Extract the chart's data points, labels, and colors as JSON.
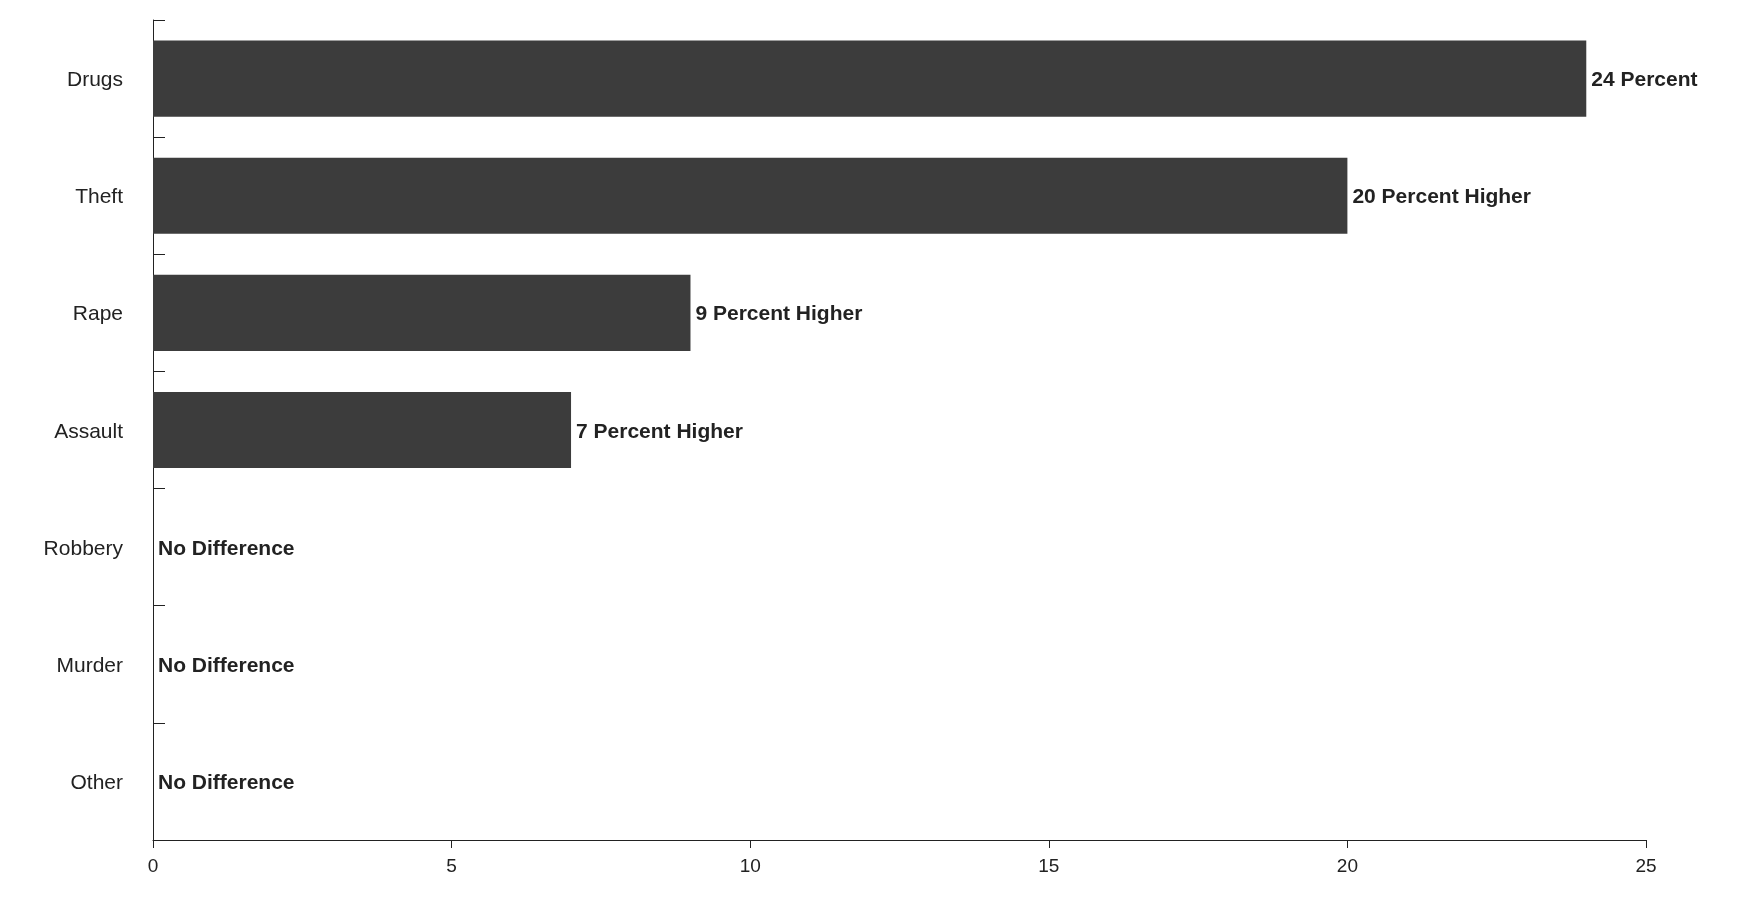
{
  "chart_data": {
    "type": "bar",
    "orientation": "horizontal",
    "categories": [
      "Drugs",
      "Theft",
      "Rape",
      "Assault",
      "Robbery",
      "Murder",
      "Other"
    ],
    "values": [
      24,
      20,
      9,
      7,
      0,
      0,
      0
    ],
    "value_labels": [
      "24 Percent",
      "20 Percent Higher",
      "9 Percent Higher",
      "7 Percent Higher",
      "No Difference",
      "No Difference",
      "No Difference"
    ],
    "color": "#3c3c3c",
    "xlim": [
      0,
      25
    ],
    "xticks": [
      0,
      5,
      10,
      15,
      20,
      25
    ],
    "grid": false
  }
}
